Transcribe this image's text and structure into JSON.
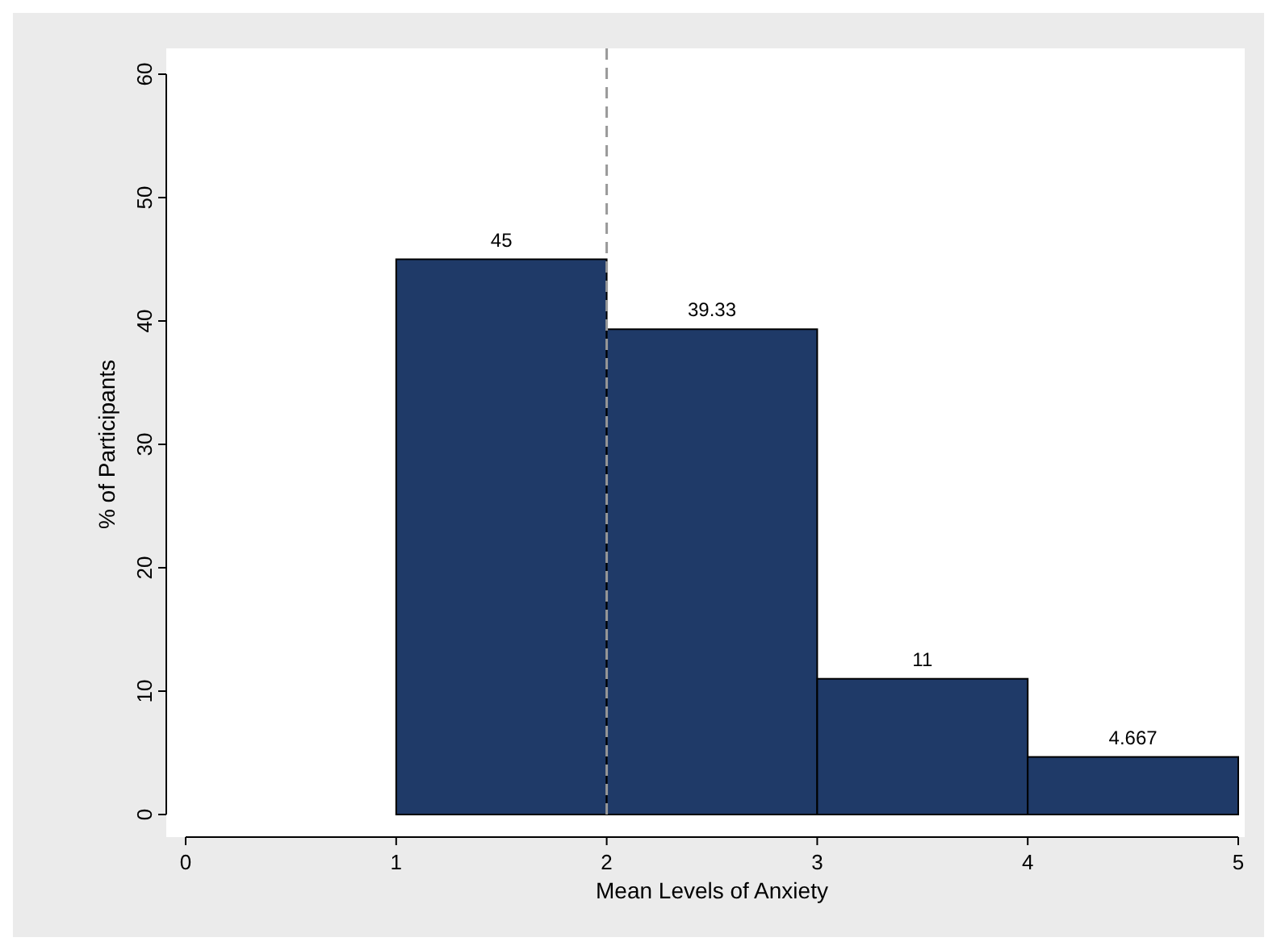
{
  "chart_data": {
    "type": "histogram",
    "xlabel": "Mean Levels of Anxiety",
    "ylabel": "% of Participants",
    "bins": [
      1,
      2,
      3,
      4,
      5
    ],
    "values": [
      45,
      39.33,
      11,
      4.667
    ],
    "color": "#1f3a68",
    "xlim": [
      0,
      5
    ],
    "xticks": [
      0,
      1,
      2,
      3,
      4,
      5
    ],
    "ylim": [
      0,
      60
    ],
    "yticks": [
      0,
      10,
      20,
      30,
      40,
      50,
      60
    ],
    "data_labels": true,
    "grid": false,
    "ref_lines": [
      {
        "axis": "x",
        "value": 2,
        "color": "#999999",
        "line_style": "dashed"
      }
    ]
  }
}
